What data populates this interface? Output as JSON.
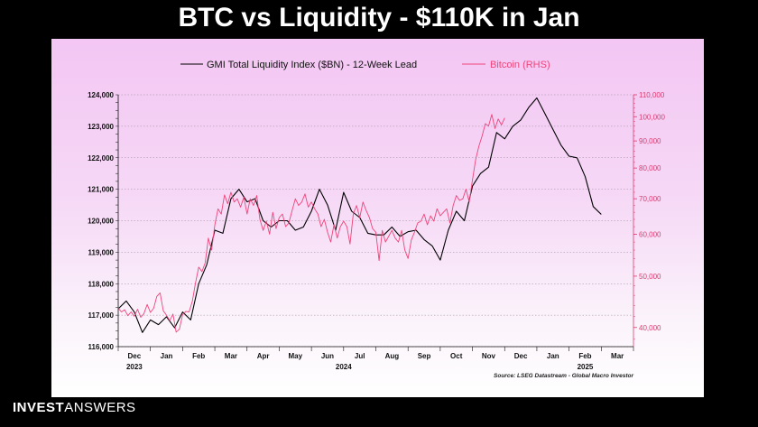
{
  "slide": {
    "title": "BTC vs Liquidity - $110K in Jan"
  },
  "logo": {
    "bold": "INVEST",
    "light": "ANSWERS"
  },
  "colors": {
    "liquidity": "#000000",
    "bitcoin": "#f0447a",
    "right_axis": "#e0396e",
    "grid": "#9a8a9a"
  },
  "chart_data": {
    "type": "line",
    "title": "",
    "legend": [
      "GMI Total Liquidity Index ($BN) - 12-Week Lead",
      "Bitcoin (RHS)"
    ],
    "legend_position": "top",
    "grid": true,
    "source": "Source: LSEG Datastream - Global Macro Investor",
    "x_tick_labels": [
      "Dec",
      "Jan",
      "Feb",
      "Mar",
      "Apr",
      "May",
      "Jun",
      "Jul",
      "Aug",
      "Sep",
      "Oct",
      "Nov",
      "Dec",
      "Jan",
      "Feb",
      "Mar"
    ],
    "x_year_labels": [
      {
        "label": "2023",
        "month_index": 0
      },
      {
        "label": "2024",
        "month_index": 6.5
      },
      {
        "label": "2025",
        "month_index": 14
      }
    ],
    "xlim": [
      0,
      16
    ],
    "ylabel": "",
    "y2label": "",
    "y_left": {
      "ticks": [
        "116,000",
        "117,000",
        "118,000",
        "119,000",
        "120,000",
        "121,000",
        "122,000",
        "123,000",
        "124,000"
      ],
      "tick_values": [
        116000,
        117000,
        118000,
        119000,
        120000,
        121000,
        122000,
        123000,
        124000
      ],
      "ylim": [
        116000,
        124000
      ]
    },
    "y_right": {
      "scale": "log",
      "ticks": [
        "40,000",
        "50,000",
        "60,000",
        "70,000",
        "80,000",
        "90,000",
        "100,000",
        "110,000"
      ],
      "tick_values": [
        40000,
        50000,
        60000,
        70000,
        80000,
        90000,
        100000,
        110000
      ],
      "ylim": [
        36800,
        110000
      ]
    },
    "series": [
      {
        "name": "GMI Total Liquidity Index ($BN) - 12-Week Lead",
        "axis": "left",
        "x": [
          0,
          0.25,
          0.5,
          0.75,
          1.0,
          1.25,
          1.5,
          1.75,
          2.0,
          2.25,
          2.5,
          2.75,
          3.0,
          3.25,
          3.5,
          3.75,
          4.0,
          4.25,
          4.5,
          4.75,
          5.0,
          5.25,
          5.5,
          5.75,
          6.0,
          6.25,
          6.5,
          6.75,
          7.0,
          7.25,
          7.5,
          7.75,
          8.0,
          8.25,
          8.5,
          8.75,
          9.0,
          9.25,
          9.5,
          9.75,
          10.0,
          10.25,
          10.5,
          10.75,
          11.0,
          11.25,
          11.5,
          11.75,
          12.0,
          12.25,
          12.5,
          12.75,
          13.0,
          13.25,
          13.5,
          13.75,
          14.0,
          14.25
        ],
        "values": [
          117200,
          117450,
          117100,
          116450,
          116850,
          116700,
          116950,
          116600,
          117100,
          116850,
          118000,
          118600,
          119700,
          119600,
          120700,
          121000,
          120600,
          120700,
          120000,
          119800,
          120000,
          120000,
          119700,
          119800,
          120300,
          121000,
          120500,
          119700,
          120900,
          120300,
          120100,
          119600,
          119550,
          119550,
          119800,
          119500,
          119650,
          119700,
          119400,
          119200,
          118750,
          119700,
          120300,
          120000,
          121100,
          121500,
          121700,
          122800,
          122600,
          123000,
          123200,
          123600,
          123900,
          123400,
          122900,
          122400,
          122050,
          122000
        ]
      },
      {
        "name": "GMI Total Liquidity Index ($BN) - 12-Week Lead (tail)",
        "axis": "left",
        "x": [
          14.25,
          14.5,
          14.75,
          15.0
        ],
        "values": [
          122000,
          121400,
          120450,
          120200
        ]
      },
      {
        "name": "Bitcoin (RHS)",
        "axis": "right",
        "x": [
          0,
          0.1,
          0.2,
          0.3,
          0.4,
          0.5,
          0.6,
          0.7,
          0.8,
          0.9,
          1.0,
          1.1,
          1.2,
          1.3,
          1.4,
          1.5,
          1.6,
          1.7,
          1.8,
          1.9,
          2.0,
          2.1,
          2.2,
          2.3,
          2.4,
          2.5,
          2.6,
          2.7,
          2.8,
          2.9,
          3.0,
          3.1,
          3.2,
          3.3,
          3.4,
          3.5,
          3.6,
          3.7,
          3.8,
          3.9,
          4.0,
          4.1,
          4.2,
          4.3,
          4.4,
          4.5,
          4.6,
          4.7,
          4.8,
          4.9,
          5.0,
          5.1,
          5.2,
          5.3,
          5.4,
          5.5,
          5.6,
          5.7,
          5.8,
          5.9,
          6.0,
          6.1,
          6.2,
          6.3,
          6.4,
          6.5,
          6.6,
          6.7,
          6.8,
          6.9,
          7.0,
          7.1,
          7.2,
          7.3,
          7.4,
          7.5,
          7.6,
          7.7,
          7.8,
          7.9,
          8.0,
          8.1,
          8.2,
          8.3,
          8.4,
          8.5,
          8.6,
          8.7,
          8.8,
          8.9,
          9.0,
          9.1,
          9.2,
          9.3,
          9.4,
          9.5,
          9.6,
          9.7,
          9.8,
          9.9,
          10.0,
          10.1,
          10.2,
          10.3,
          10.4,
          10.5,
          10.6,
          10.7,
          10.8,
          10.9,
          11.0,
          11.1,
          11.2,
          11.3,
          11.4,
          11.5,
          11.6,
          11.7,
          11.8,
          11.9,
          12.0
        ],
        "values": [
          43500,
          42800,
          43200,
          42100,
          42800,
          42000,
          43300,
          41800,
          42500,
          44200,
          42700,
          43500,
          45800,
          46500,
          43000,
          42200,
          41200,
          42400,
          39200,
          39700,
          42300,
          42900,
          42800,
          44800,
          48500,
          52000,
          51000,
          53000,
          59000,
          56000,
          62500,
          67000,
          65500,
          71200,
          68500,
          72000,
          69000,
          70000,
          67500,
          70500,
          65500,
          70000,
          68000,
          71000,
          64000,
          61000,
          63500,
          60000,
          66000,
          61500,
          64500,
          65500,
          62000,
          63000,
          66500,
          70000,
          68000,
          69000,
          71500,
          67500,
          69000,
          67000,
          65500,
          62000,
          64000,
          60500,
          58000,
          62500,
          59000,
          62000,
          63500,
          62000,
          57500,
          65500,
          68000,
          64500,
          69000,
          66500,
          64500,
          61500,
          60500,
          53500,
          61000,
          58000,
          59500,
          61000,
          59000,
          58000,
          61000,
          56000,
          54000,
          58500,
          60500,
          63000,
          63500,
          65500,
          62500,
          65000,
          63500,
          67000,
          65000,
          66000,
          67000,
          63000,
          68000,
          71000,
          69500,
          70000,
          73000,
          69000,
          76000,
          83000,
          88000,
          92000,
          97000,
          96000,
          101000,
          95000,
          99000,
          96500,
          99500
        ]
      }
    ]
  }
}
